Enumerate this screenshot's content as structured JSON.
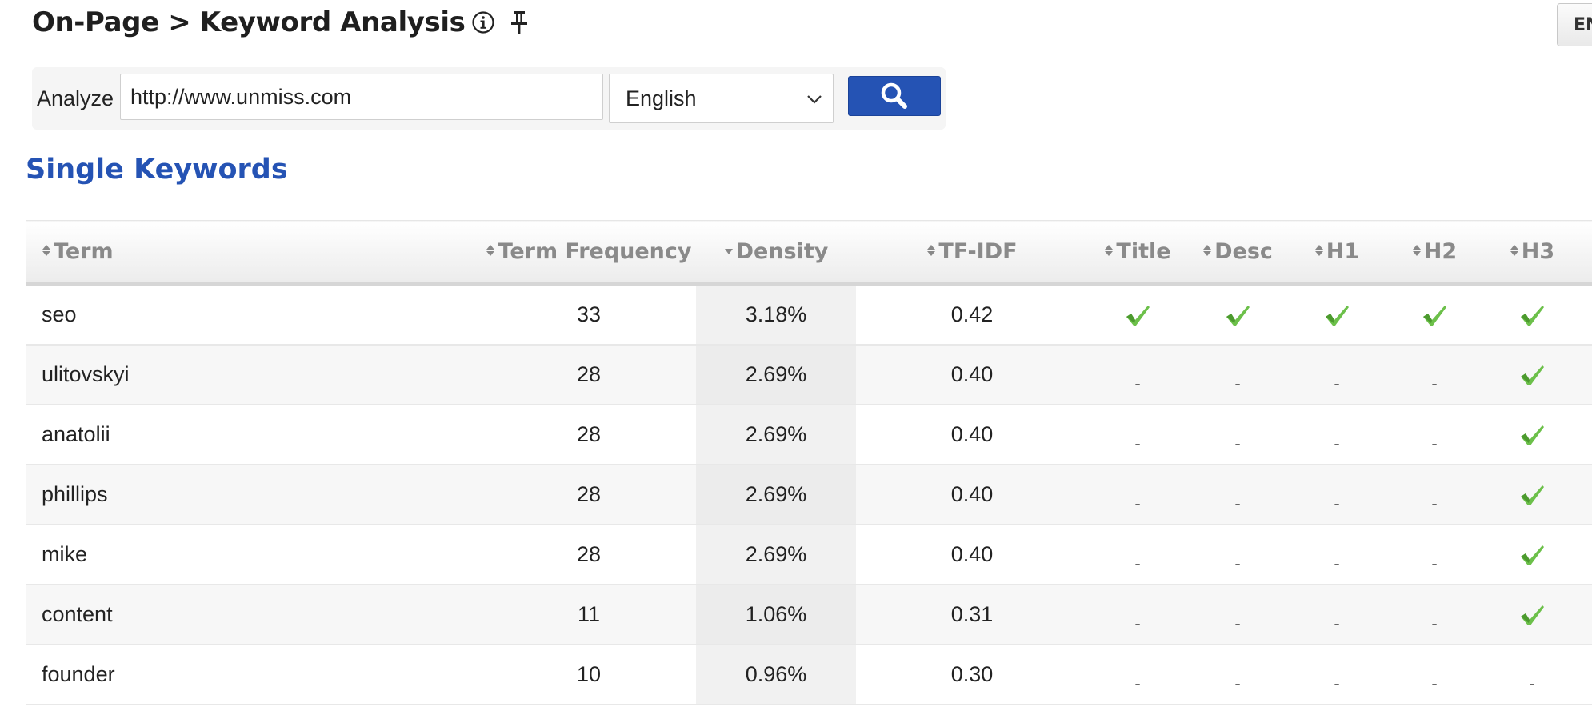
{
  "header": {
    "title": "On-Page > Keyword Analysis",
    "info_icon": "info-circle-icon",
    "pin_icon": "pin-icon",
    "top_right_button_label": "EN"
  },
  "analyze": {
    "label": "Analyze",
    "url_value": "http://www.unmiss.com",
    "language_selected": "English",
    "search_icon": "search-icon"
  },
  "section_title": "Single Keywords",
  "table": {
    "columns": [
      "Term",
      "Term Frequency",
      "Density",
      "TF-IDF",
      "Title",
      "Desc",
      "H1",
      "H2",
      "H3"
    ],
    "sorted_column": "Density",
    "rows": [
      {
        "term": "seo",
        "tf": "33",
        "density": "3.18%",
        "tfidf": "0.42",
        "title": true,
        "desc": true,
        "h1": true,
        "h2": true,
        "h3": true
      },
      {
        "term": "ulitovskyi",
        "tf": "28",
        "density": "2.69%",
        "tfidf": "0.40",
        "title": false,
        "desc": false,
        "h1": false,
        "h2": false,
        "h3": true
      },
      {
        "term": "anatolii",
        "tf": "28",
        "density": "2.69%",
        "tfidf": "0.40",
        "title": false,
        "desc": false,
        "h1": false,
        "h2": false,
        "h3": true
      },
      {
        "term": "phillips",
        "tf": "28",
        "density": "2.69%",
        "tfidf": "0.40",
        "title": false,
        "desc": false,
        "h1": false,
        "h2": false,
        "h3": true
      },
      {
        "term": "mike",
        "tf": "28",
        "density": "2.69%",
        "tfidf": "0.40",
        "title": false,
        "desc": false,
        "h1": false,
        "h2": false,
        "h3": true
      },
      {
        "term": "content",
        "tf": "11",
        "density": "1.06%",
        "tfidf": "0.31",
        "title": false,
        "desc": false,
        "h1": false,
        "h2": false,
        "h3": true
      },
      {
        "term": "founder",
        "tf": "10",
        "density": "0.96%",
        "tfidf": "0.30",
        "title": false,
        "desc": false,
        "h1": false,
        "h2": false,
        "h3": false
      }
    ],
    "absent_mark": "-",
    "check_color": "#6cc04a"
  }
}
